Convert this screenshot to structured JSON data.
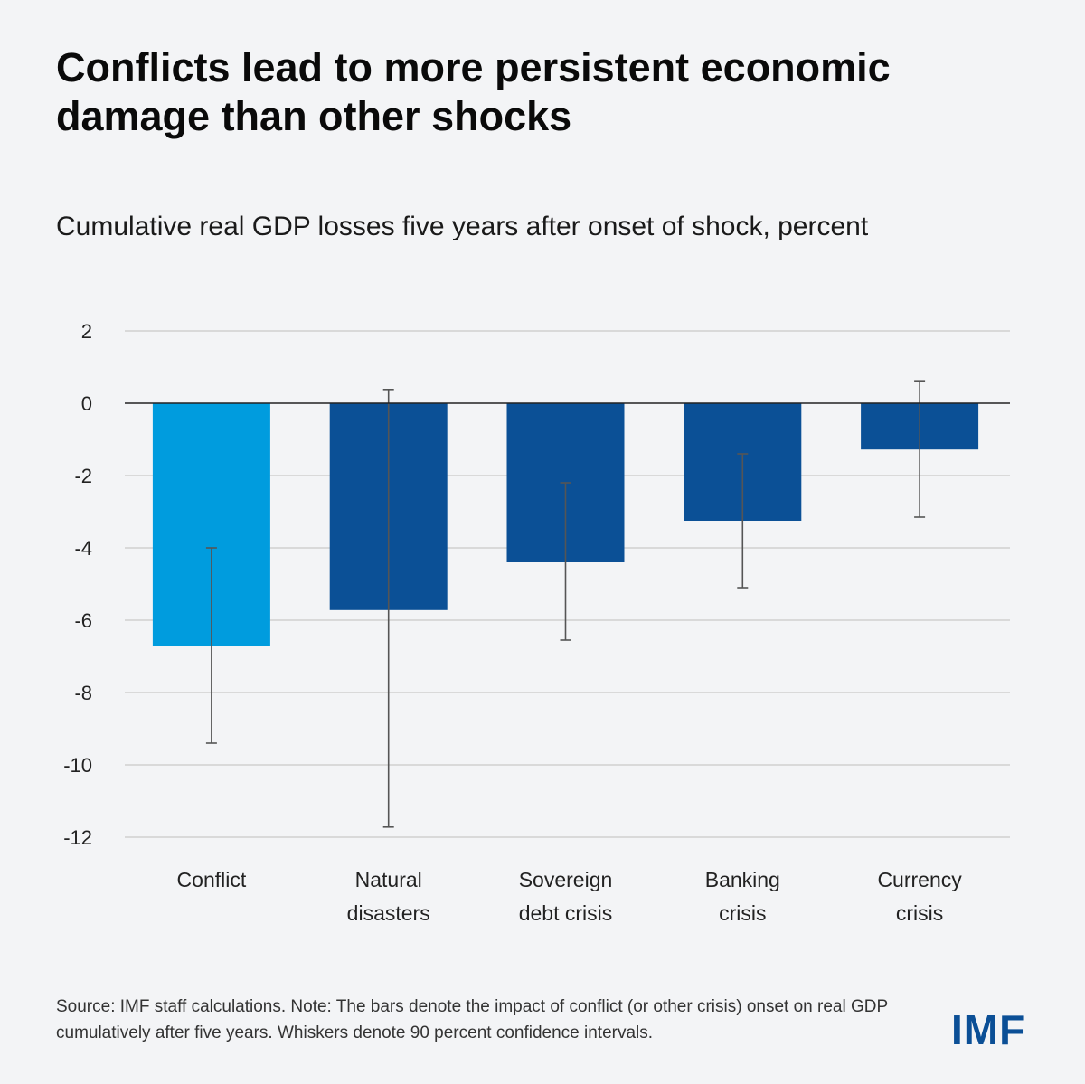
{
  "chart_data": {
    "type": "bar",
    "title": "Conflicts lead to more persistent economic damage than other shocks",
    "subtitle": "Cumulative real GDP losses five years after onset of shock, percent",
    "categories": [
      [
        "Conflict"
      ],
      [
        "Natural",
        "disasters"
      ],
      [
        "Sovereign",
        "debt crisis"
      ],
      [
        "Banking",
        "crisis"
      ],
      [
        "Currency",
        "crisis"
      ]
    ],
    "values": [
      -6.72,
      -5.72,
      -4.4,
      -3.25,
      -1.28
    ],
    "ci_low": [
      -9.4,
      -11.72,
      -6.55,
      -5.1,
      -3.15
    ],
    "ci_high": [
      -4.0,
      0.38,
      -2.2,
      -1.4,
      0.62
    ],
    "colors": [
      "#009cde",
      "#0b5096",
      "#0b5096",
      "#0b5096",
      "#0b5096"
    ],
    "ylim": [
      -12,
      2
    ],
    "yticks": [
      2,
      0,
      -2,
      -4,
      -6,
      -8,
      -10,
      -12
    ],
    "grid": true,
    "xlabel": "",
    "ylabel": ""
  },
  "note": "Source: IMF staff calculations. Note: The bars denote the impact of conflict (or other crisis) onset on real GDP cumulatively after five years. Whiskers denote 90 percent confidence intervals.",
  "logo": "IMF"
}
